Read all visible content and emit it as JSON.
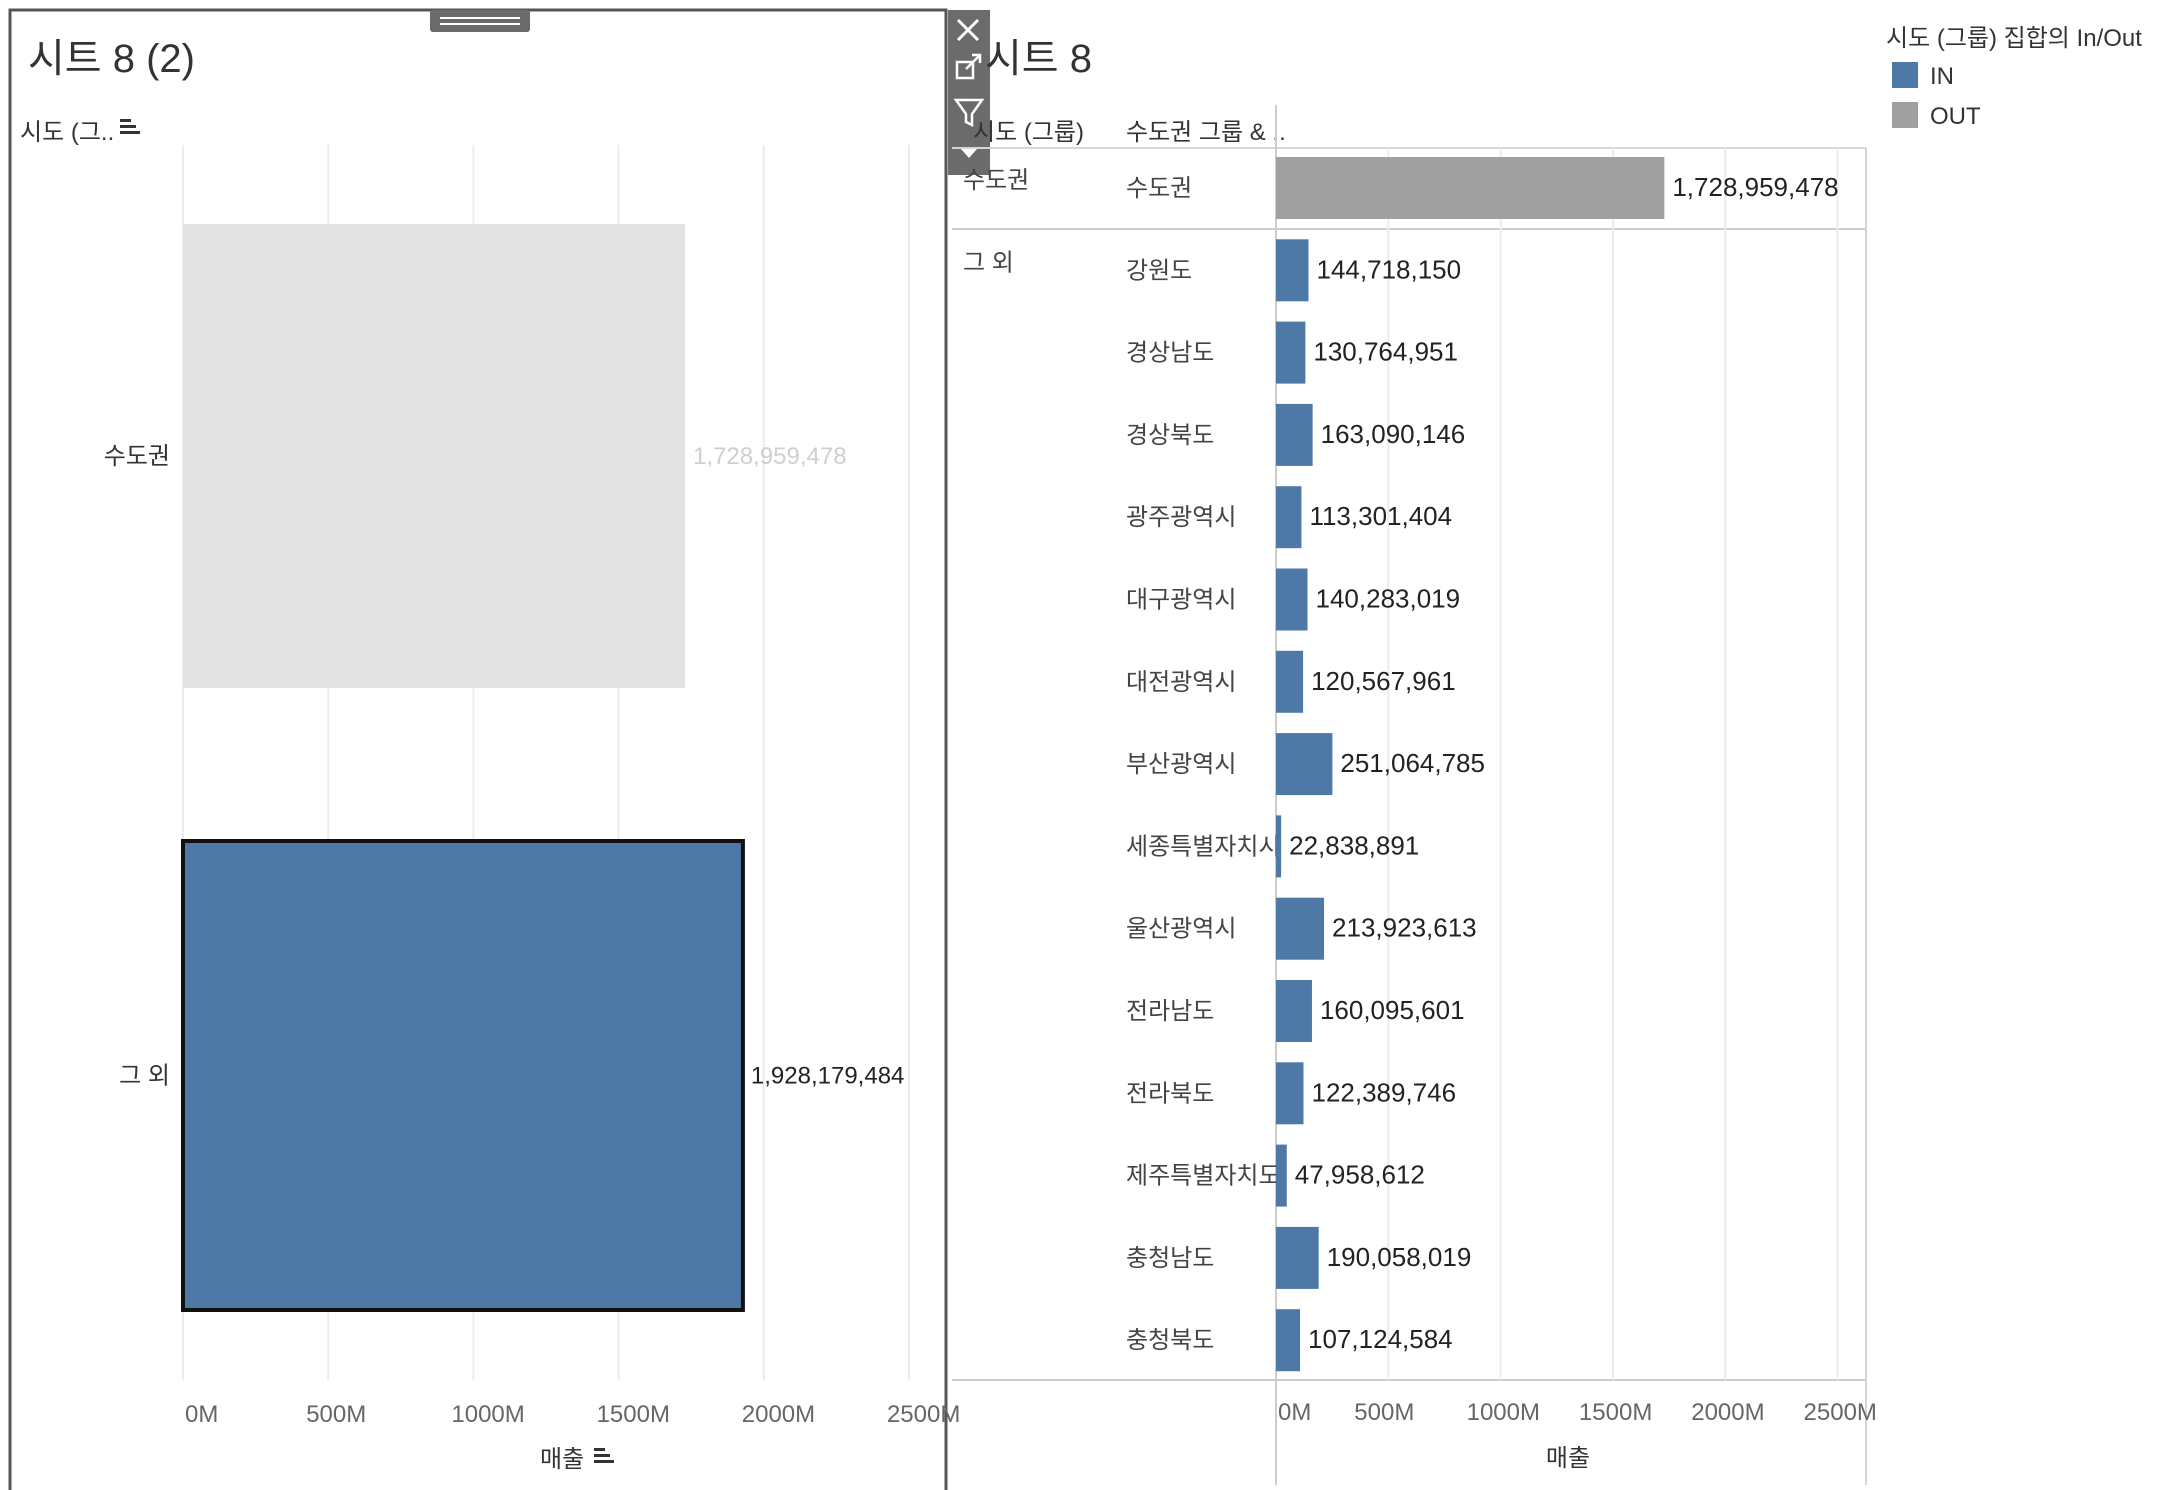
{
  "colors": {
    "in": "#4e79a7",
    "out": "#a0a0a0",
    "out_faded": "#e3e3e3",
    "label_faded": "#cfcfcf",
    "grid": "#ececec",
    "axis_text": "#666666",
    "toolbar": "#6b6b6b",
    "selection_border": "#111111"
  },
  "chart_data": [
    {
      "type": "bar",
      "orientation": "horizontal",
      "title": "시트 8 (2)",
      "row_header": "시도 (그..",
      "categories": [
        "수도권",
        "그 외"
      ],
      "values": [
        1728959478,
        1928179484
      ],
      "value_labels": [
        "1,728,959,478",
        "1,928,179,484"
      ],
      "series": [
        {
          "name": "매출",
          "values": [
            1728959478,
            1928179484
          ]
        }
      ],
      "selected": "그 외",
      "xlabel": "매출",
      "ylabel": "시도 (그..",
      "xlim": [
        0,
        2600000000
      ],
      "xticks": [
        0,
        500000000,
        1000000000,
        1500000000,
        2000000000,
        2500000000
      ],
      "xtick_labels": [
        "0M",
        "500M",
        "1000M",
        "1500M",
        "2000M",
        "2500M"
      ],
      "grid": true
    },
    {
      "type": "bar",
      "orientation": "horizontal",
      "title": "시트 8",
      "column_headers": [
        "시도 (그룹)",
        "수도권 그룹 & .."
      ],
      "rows": [
        {
          "group": "수도권",
          "region": "수도권",
          "value": 1728959478,
          "label": "1,728,959,478",
          "set": "OUT"
        },
        {
          "group": "그 외",
          "region": "강원도",
          "value": 144718150,
          "label": "144,718,150",
          "set": "IN"
        },
        {
          "group": "그 외",
          "region": "경상남도",
          "value": 130764951,
          "label": "130,764,951",
          "set": "IN"
        },
        {
          "group": "그 외",
          "region": "경상북도",
          "value": 163090146,
          "label": "163,090,146",
          "set": "IN"
        },
        {
          "group": "그 외",
          "region": "광주광역시",
          "value": 113301404,
          "label": "113,301,404",
          "set": "IN"
        },
        {
          "group": "그 외",
          "region": "대구광역시",
          "value": 140283019,
          "label": "140,283,019",
          "set": "IN"
        },
        {
          "group": "그 외",
          "region": "대전광역시",
          "value": 120567961,
          "label": "120,567,961",
          "set": "IN"
        },
        {
          "group": "그 외",
          "region": "부산광역시",
          "value": 251064785,
          "label": "251,064,785",
          "set": "IN"
        },
        {
          "group": "그 외",
          "region": "세종특별자치시",
          "value": 22838891,
          "label": "22,838,891",
          "set": "IN"
        },
        {
          "group": "그 외",
          "region": "울산광역시",
          "value": 213923613,
          "label": "213,923,613",
          "set": "IN"
        },
        {
          "group": "그 외",
          "region": "전라남도",
          "value": 160095601,
          "label": "160,095,601",
          "set": "IN"
        },
        {
          "group": "그 외",
          "region": "전라북도",
          "value": 122389746,
          "label": "122,389,746",
          "set": "IN"
        },
        {
          "group": "그 외",
          "region": "제주특별자치도",
          "value": 47958612,
          "label": "47,958,612",
          "set": "IN"
        },
        {
          "group": "그 외",
          "region": "충청남도",
          "value": 190058019,
          "label": "190,058,019",
          "set": "IN"
        },
        {
          "group": "그 외",
          "region": "충청북도",
          "value": 107124584,
          "label": "107,124,584",
          "set": "IN"
        }
      ],
      "xlabel": "매출",
      "xlim": [
        0,
        2600000000
      ],
      "xticks": [
        0,
        500000000,
        1000000000,
        1500000000,
        2000000000,
        2500000000
      ],
      "xtick_labels": [
        "0M",
        "500M",
        "1000M",
        "1500M",
        "2000M",
        "2500M"
      ],
      "grid": true
    }
  ],
  "legend": {
    "title": "시도 (그룹) 집합의 In/Out",
    "items": [
      {
        "label": "IN",
        "color": "#4e79a7"
      },
      {
        "label": "OUT",
        "color": "#a0a0a0"
      }
    ]
  }
}
